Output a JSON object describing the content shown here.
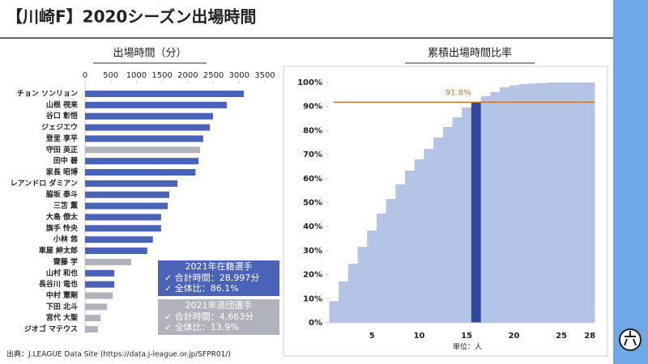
{
  "header": {
    "title": "【川崎F】2020シーズン出場時間",
    "source": "出典：J.LEAGUE Data Site (https://data.j-league.or.jp/SFPR01/)"
  },
  "chart_data": [
    {
      "type": "hbar",
      "title": "出場時間（分）",
      "categories": [
        "チョン ソンリョン",
        "山根 視来",
        "谷口 彰悟",
        "ジェジエウ",
        "登里 享平",
        "守田 英正",
        "田中 碧",
        "家長 昭博",
        "レアンドロ ダミアン",
        "脇坂 泰斗",
        "三笘 薫",
        "大島 僚太",
        "旗手 怜央",
        "小林 悠",
        "車屋 紳太郎",
        "齋藤 学",
        "山村 和也",
        "長谷川 竜也",
        "中村 憲剛",
        "下田 北斗",
        "宮代 大聖",
        "ジオゴ マテウス"
      ],
      "series": [
        {
          "name": "2021年在籍選手",
          "color": "#4a62b8",
          "values": [
            3090,
            2760,
            2490,
            2430,
            2300,
            null,
            2210,
            2150,
            1800,
            1640,
            1610,
            1480,
            1480,
            1320,
            1210,
            null,
            570,
            570,
            null,
            null,
            null,
            null
          ],
          "notes": [
            "✓ 合計時間：28,997分",
            "✓ 全体比：86.1%"
          ]
        },
        {
          "name": "2021年退団選手",
          "color": "#b0b3bb",
          "values": [
            null,
            null,
            null,
            null,
            null,
            2240,
            null,
            null,
            null,
            null,
            null,
            null,
            null,
            null,
            null,
            900,
            null,
            null,
            540,
            430,
            300,
            250
          ],
          "notes": [
            "✓ 合計時間：4,663分",
            "✓ 全体比：13.9%"
          ]
        }
      ],
      "xlim": [
        0,
        3500
      ],
      "xticks": [
        0,
        500,
        1000,
        1500,
        2000,
        2500,
        3000,
        3500
      ]
    },
    {
      "type": "step",
      "title": "累積出場時間比率",
      "xlabel": "単位：人",
      "x": [
        1,
        2,
        3,
        4,
        5,
        6,
        7,
        8,
        9,
        10,
        11,
        12,
        13,
        14,
        15,
        16,
        17,
        18,
        19,
        20,
        21,
        22,
        23,
        24,
        25,
        26,
        27,
        28
      ],
      "values": [
        9,
        17.2,
        24.6,
        31.6,
        38.4,
        45.5,
        51.5,
        57.6,
        63.3,
        68,
        72.4,
        77.1,
        81.5,
        85.5,
        89.6,
        91.8,
        94.3,
        96,
        98,
        98.8,
        99.3,
        99.6,
        99.8,
        100,
        100,
        100,
        100,
        100
      ],
      "color": "#b4c4e6",
      "highlight": 16,
      "highlight_color": "#34489a",
      "reference_line": {
        "value": 91.8,
        "label": "91.8%",
        "color": "#c8742a"
      },
      "xlim": [
        0.5,
        28.5
      ],
      "xticks": [
        5,
        10,
        15,
        20,
        25,
        28
      ],
      "ylim": [
        0,
        100
      ],
      "yticks": [
        {
          "value": 0,
          "label": "0%"
        },
        {
          "value": 10,
          "label": "10%"
        },
        {
          "value": 20,
          "label": "20%"
        },
        {
          "value": 30,
          "label": "30%"
        },
        {
          "value": 40,
          "label": "40%"
        },
        {
          "value": 50,
          "label": "50%"
        },
        {
          "value": 60,
          "label": "60%"
        },
        {
          "value": 70,
          "label": "70%"
        },
        {
          "value": 80,
          "label": "80%"
        },
        {
          "value": 90,
          "label": "90%"
        },
        {
          "value": 100,
          "label": "100%"
        }
      ]
    }
  ]
}
